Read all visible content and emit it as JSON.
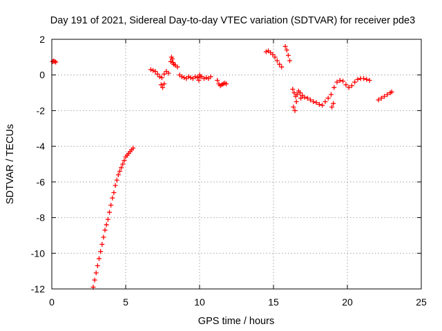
{
  "chart_data": {
    "type": "scatter",
    "title": "Day 191 of 2021, Sidereal Day-to-day VTEC variation (SDTVAR) for receiver pde3",
    "xlabel": "GPS time / hours",
    "ylabel": "SDTVAR / TECUs",
    "xlim": [
      0,
      25
    ],
    "ylim": [
      -12,
      2
    ],
    "xticks": [
      0,
      5,
      10,
      15,
      20,
      25
    ],
    "yticks": [
      2,
      0,
      -2,
      -4,
      -6,
      -8,
      -10,
      -12
    ],
    "xtick_labels": [
      "0",
      "5",
      "10",
      "15",
      "20",
      "25"
    ],
    "ytick_labels": [
      "2",
      "0",
      "-2",
      "-4",
      "-6",
      "-8",
      "-10",
      "-12"
    ],
    "grid": true,
    "marker": "plus",
    "color": "#ff0000",
    "series": [
      {
        "name": "seg1",
        "x": [
          0.05,
          0.12,
          0.2,
          0.27
        ],
        "y": [
          0.75,
          0.78,
          0.76,
          0.72
        ]
      },
      {
        "name": "seg2",
        "x": [
          2.8,
          2.9,
          3.0,
          3.1,
          3.2,
          3.3,
          3.4,
          3.5,
          3.6,
          3.7,
          3.8,
          3.9,
          4.0,
          4.1,
          4.2,
          4.3,
          4.4,
          4.5,
          4.6,
          4.7,
          4.8,
          4.9,
          5.0,
          5.1,
          5.2,
          5.3,
          5.4,
          5.5
        ],
        "y": [
          -11.9,
          -11.5,
          -11.1,
          -10.7,
          -10.3,
          -9.9,
          -9.5,
          -9.1,
          -8.7,
          -8.4,
          -8.1,
          -7.7,
          -7.3,
          -6.9,
          -6.6,
          -6.2,
          -5.9,
          -5.6,
          -5.4,
          -5.2,
          -5.0,
          -4.8,
          -4.6,
          -4.5,
          -4.4,
          -4.3,
          -4.2,
          -4.1
        ]
      },
      {
        "name": "seg3",
        "x": [
          6.7,
          6.85,
          7.0,
          7.15,
          7.3,
          7.45,
          7.6,
          7.75,
          7.9,
          8.05,
          8.2,
          8.35,
          8.5,
          8.65,
          8.8,
          8.95,
          9.1,
          9.25,
          9.4,
          9.55,
          9.7,
          9.85,
          10.0,
          10.15,
          10.3,
          10.45,
          10.6,
          10.75
        ],
        "y": [
          0.3,
          0.25,
          0.2,
          0.05,
          -0.1,
          -0.15,
          0.05,
          0.2,
          0.1,
          0.75,
          0.7,
          0.55,
          0.45,
          0.0,
          -0.1,
          -0.15,
          -0.2,
          -0.1,
          -0.15,
          -0.2,
          -0.1,
          -0.15,
          0.0,
          -0.1,
          -0.2,
          -0.15,
          -0.2,
          -0.1
        ]
      },
      {
        "name": "seg4",
        "x": [
          7.4,
          7.5,
          7.6,
          8.1,
          8.15,
          8.25,
          9.95,
          10.05
        ],
        "y": [
          -0.55,
          -0.7,
          -0.5,
          1.0,
          0.9,
          0.6,
          -0.3,
          -0.1
        ]
      },
      {
        "name": "seg5",
        "x": [
          11.2,
          11.3,
          11.4,
          11.5,
          11.6,
          11.7,
          11.8
        ],
        "y": [
          -0.3,
          -0.5,
          -0.6,
          -0.55,
          -0.5,
          -0.45,
          -0.5
        ]
      },
      {
        "name": "seg6",
        "x": [
          14.5,
          14.65,
          14.8,
          14.95,
          15.1,
          15.25,
          15.4,
          15.55
        ],
        "y": [
          1.3,
          1.35,
          1.25,
          1.15,
          1.0,
          0.8,
          0.6,
          0.45
        ]
      },
      {
        "name": "seg7",
        "x": [
          15.8,
          15.9,
          16.0,
          16.1
        ],
        "y": [
          1.6,
          1.4,
          1.1,
          0.8
        ]
      },
      {
        "name": "seg8",
        "x": [
          16.3,
          16.4,
          16.5,
          16.6,
          16.7,
          16.8,
          16.95,
          17.1,
          17.3,
          17.5,
          17.7,
          17.9,
          18.1,
          18.3,
          18.5,
          18.7,
          18.9,
          19.1,
          19.3,
          19.5,
          19.7,
          19.9,
          20.1,
          20.3,
          20.5,
          20.7,
          20.9,
          21.1,
          21.3,
          21.5
        ],
        "y": [
          -0.8,
          -1.0,
          -1.2,
          -1.1,
          -0.9,
          -1.0,
          -1.15,
          -1.25,
          -1.3,
          -1.4,
          -1.5,
          -1.55,
          -1.65,
          -1.7,
          -1.5,
          -1.3,
          -1.1,
          -0.7,
          -0.4,
          -0.3,
          -0.35,
          -0.55,
          -0.7,
          -0.6,
          -0.4,
          -0.25,
          -0.2,
          -0.2,
          -0.25,
          -0.3
        ]
      },
      {
        "name": "seg9",
        "x": [
          16.35,
          16.45,
          16.55,
          16.85,
          18.95,
          19.05
        ],
        "y": [
          -1.8,
          -2.0,
          -1.5,
          -1.3,
          -1.8,
          -1.6
        ]
      },
      {
        "name": "seg10",
        "x": [
          22.1,
          22.3,
          22.5,
          22.7,
          22.9,
          23.0
        ],
        "y": [
          -1.4,
          -1.3,
          -1.2,
          -1.1,
          -1.0,
          -0.95
        ]
      }
    ]
  }
}
